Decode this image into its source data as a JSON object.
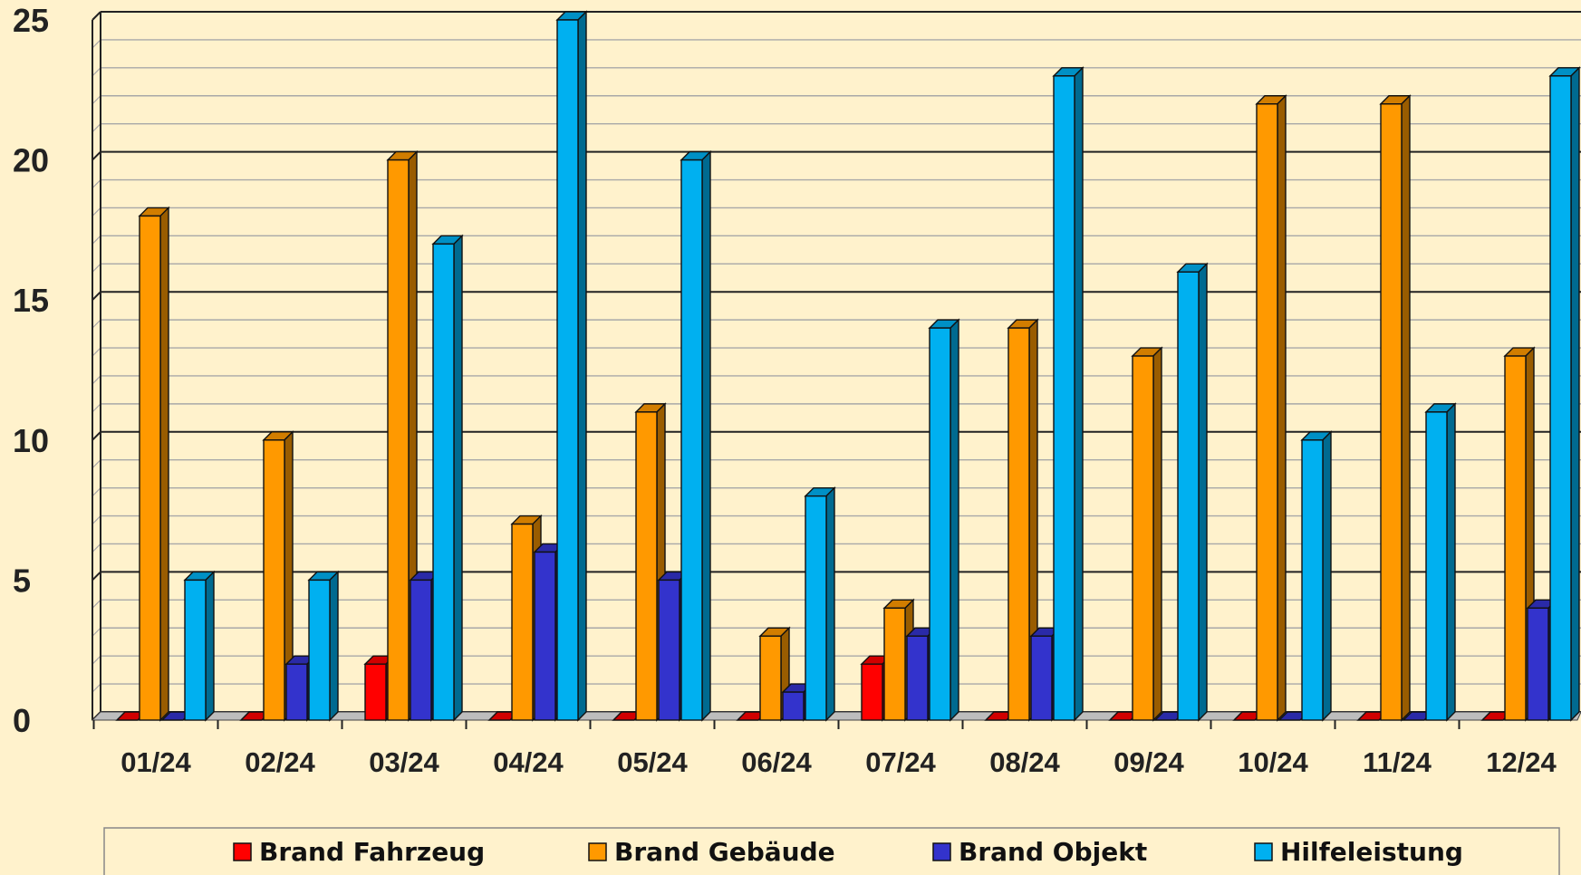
{
  "chart_data": {
    "type": "bar",
    "categories": [
      "01/24",
      "02/24",
      "03/24",
      "04/24",
      "05/24",
      "06/24",
      "07/24",
      "08/24",
      "09/24",
      "10/24",
      "11/24",
      "12/24"
    ],
    "series": [
      {
        "name": "Brand Fahrzeug",
        "color": "#ff0000",
        "values": [
          0,
          0,
          2,
          0,
          0,
          0,
          2,
          0,
          0,
          0,
          0,
          0
        ]
      },
      {
        "name": "Brand Gebäude",
        "color": "#ff9900",
        "values": [
          18,
          10,
          20,
          7,
          11,
          3,
          4,
          14,
          13,
          22,
          22,
          13
        ]
      },
      {
        "name": "Brand Objekt",
        "color": "#3333cc",
        "values": [
          0,
          2,
          5,
          6,
          5,
          1,
          3,
          3,
          0,
          0,
          0,
          4
        ]
      },
      {
        "name": "Hilfeleistung",
        "color": "#00b0f0",
        "values": [
          5,
          5,
          17,
          25,
          20,
          8,
          14,
          23,
          16,
          10,
          11,
          23
        ]
      }
    ],
    "ylim": [
      0,
      25
    ],
    "yticks": [
      "0",
      "5",
      "10",
      "15",
      "20",
      "25"
    ],
    "grid": true,
    "legend_position": "bottom",
    "title": "",
    "xlabel": "",
    "ylabel": ""
  }
}
